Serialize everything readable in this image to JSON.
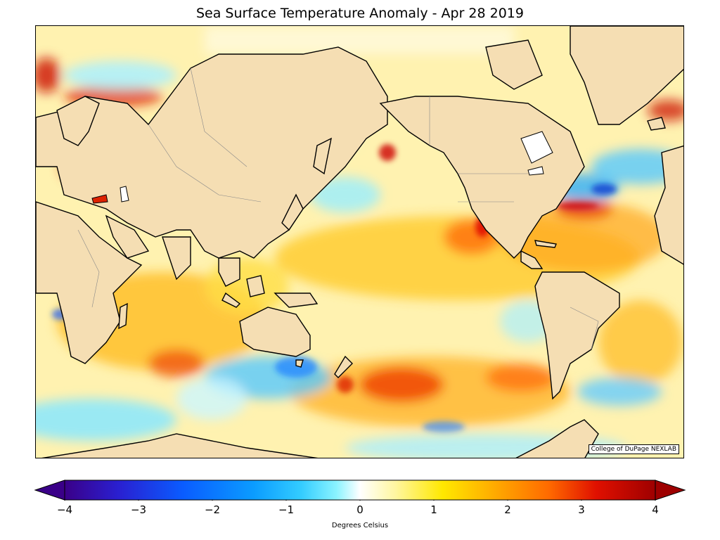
{
  "title": "Sea Surface Temperature Anomaly - Apr 28 2019",
  "credit": "College of DuPage NEXLAB",
  "colorbar": {
    "label": "Degrees Celsius",
    "min": -4,
    "max": 4,
    "ticks": [
      "−4",
      "−3",
      "−2",
      "−1",
      "0",
      "1",
      "2",
      "3",
      "4"
    ],
    "extend": "both",
    "colors": [
      "#3a0088",
      "#2a1fd0",
      "#0a5cff",
      "#0b9cff",
      "#33ccff",
      "#8af3ff",
      "#ffffff",
      "#fff6a0",
      "#ffe800",
      "#ffb000",
      "#ff6a00",
      "#e01000",
      "#9e0000"
    ]
  },
  "map": {
    "land_color": "#f5deb3",
    "projection": "cylindrical, Pacific-centered"
  }
}
